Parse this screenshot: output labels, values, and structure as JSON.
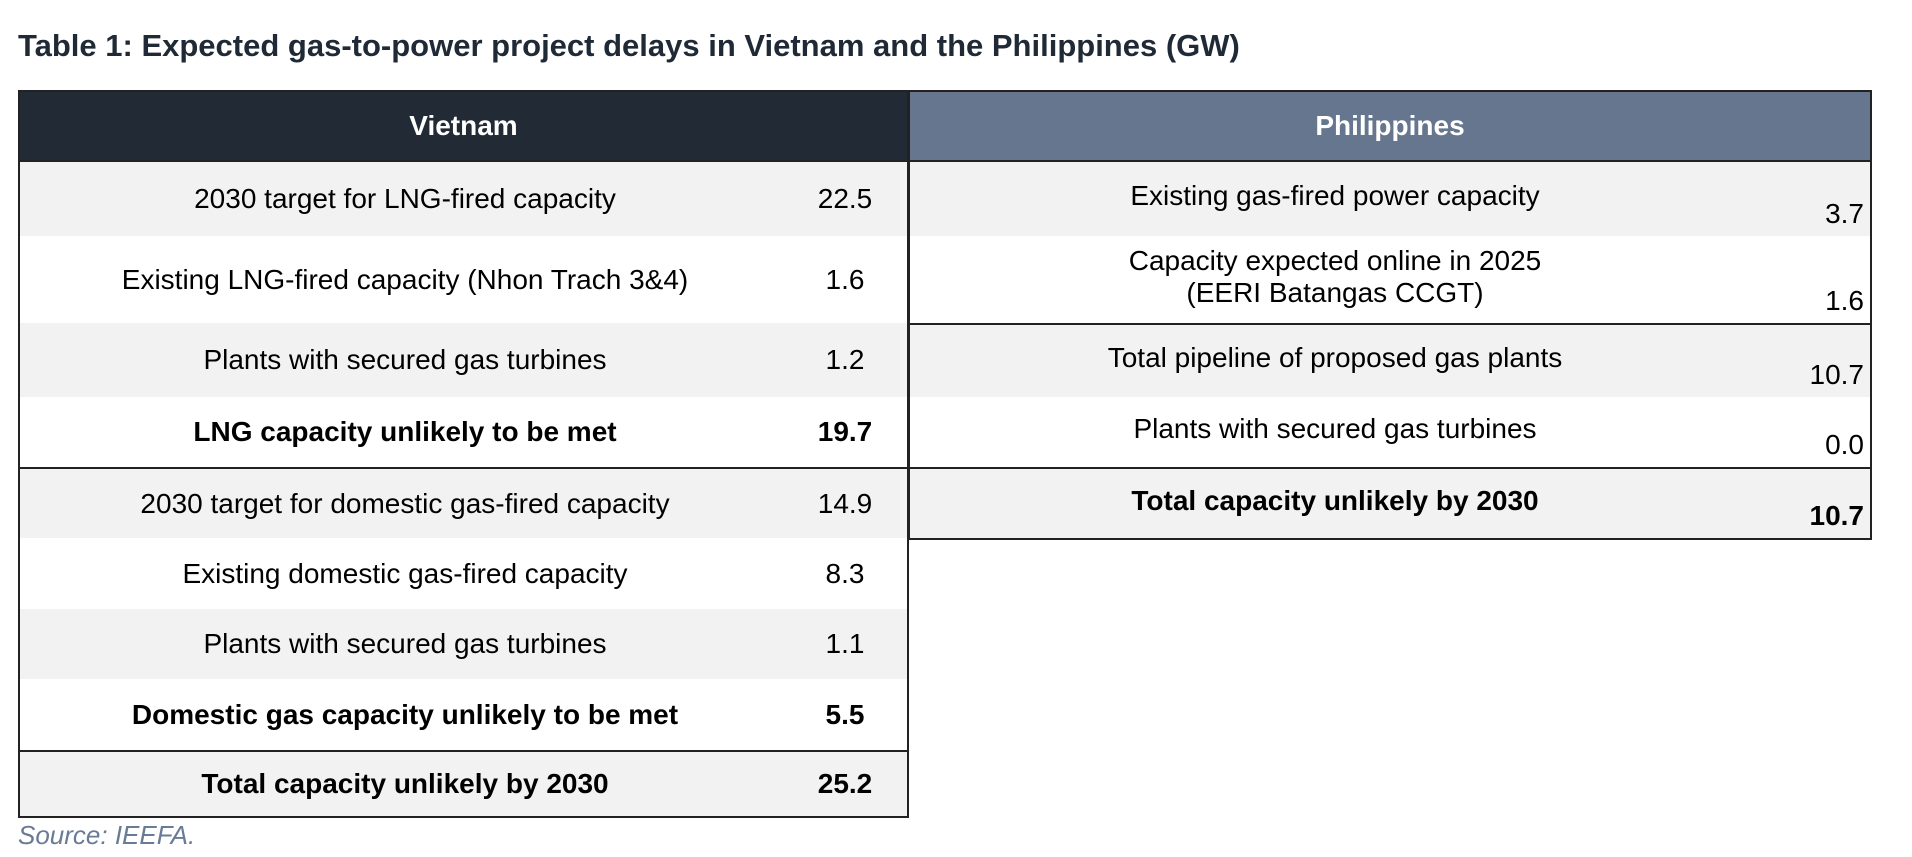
{
  "title": "Table 1: Expected gas-to-power project delays in Vietnam and the Philippines (GW)",
  "vietnam": {
    "header": "Vietnam",
    "rows": [
      {
        "label": "2030 target for LNG-fired capacity",
        "value": "22.5"
      },
      {
        "label": "Existing LNG-fired capacity (Nhon Trach 3&4)",
        "value": "1.6"
      },
      {
        "label": "Plants with secured gas turbines",
        "value": "1.2"
      },
      {
        "label": "LNG capacity unlikely to be met",
        "value": "19.7"
      },
      {
        "label": "2030 target for domestic gas-fired capacity",
        "value": "14.9"
      },
      {
        "label": "Existing domestic gas-fired capacity",
        "value": "8.3"
      },
      {
        "label": "Plants with secured gas turbines",
        "value": "1.1"
      },
      {
        "label": "Domestic gas capacity unlikely to be met",
        "value": "5.5"
      },
      {
        "label": "Total capacity unlikely by 2030",
        "value": "25.2"
      }
    ]
  },
  "philippines": {
    "header": "Philippines",
    "rows": [
      {
        "label": "Existing gas-fired power capacity",
        "value": "3.7"
      },
      {
        "label": "Capacity expected online in 2025",
        "label2": "(EERI Batangas CCGT)",
        "value": "1.6"
      },
      {
        "label": "Total pipeline of proposed gas plants",
        "value": "10.7"
      },
      {
        "label": "Plants with secured gas turbines",
        "value": "0.0"
      },
      {
        "label": "Total capacity unlikely by 2030",
        "value": "10.7"
      }
    ]
  },
  "source": "Source: IEEFA."
}
